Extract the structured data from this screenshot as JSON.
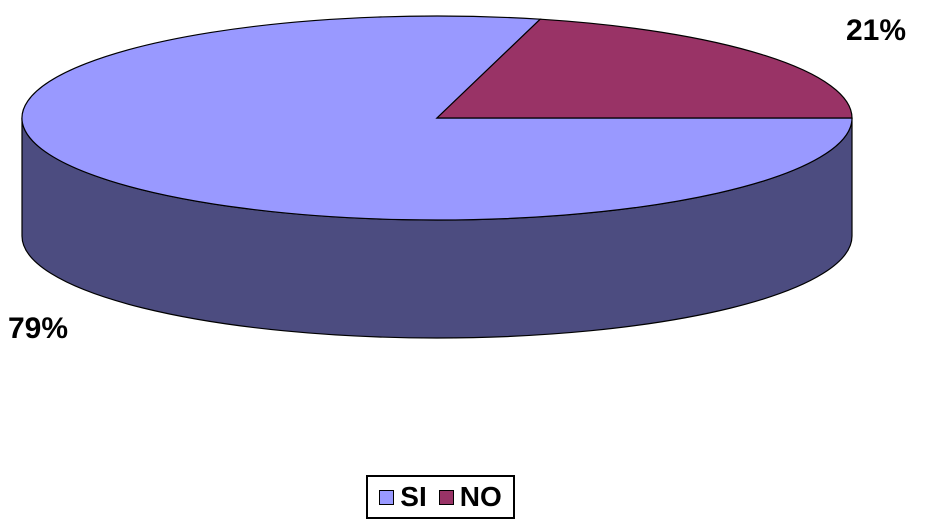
{
  "chart_data": {
    "type": "pie",
    "categories": [
      "SI",
      "NO"
    ],
    "values": [
      79,
      21
    ],
    "value_labels": [
      "79%",
      "21%"
    ],
    "colors": {
      "SI": "#9999ff",
      "SI_side": "#4c4c80",
      "NO": "#993366",
      "NO_side": "#4d1a33"
    },
    "style": "3d",
    "legend_position": "bottom"
  },
  "legend": {
    "items": [
      {
        "label": "SI",
        "color": "#9999ff"
      },
      {
        "label": "NO",
        "color": "#993366"
      }
    ]
  },
  "labels": {
    "si": "79%",
    "no": "21%"
  }
}
